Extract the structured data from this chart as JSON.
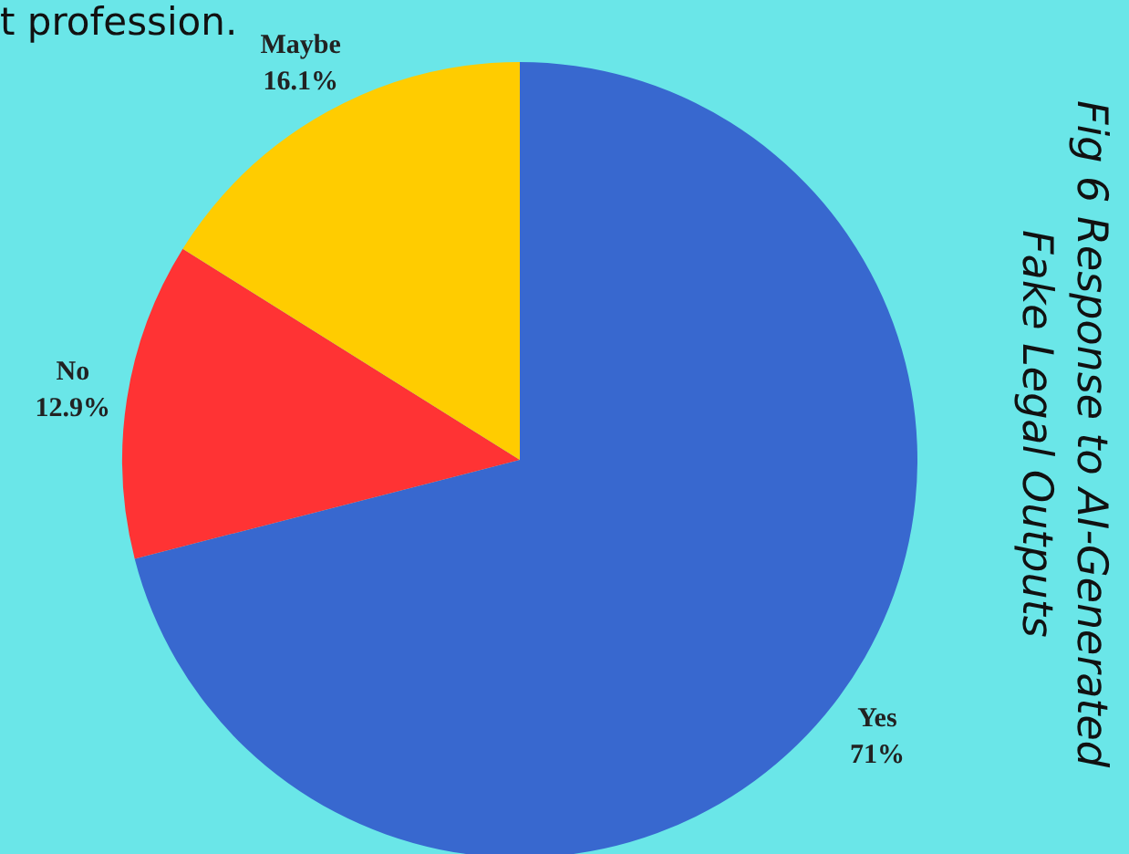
{
  "chart_data": {
    "type": "pie",
    "title": "Fig 6 Response to AI-Generated Fake Legal Outputs",
    "annotations": [
      "t profession."
    ],
    "categories": [
      "Yes",
      "No",
      "Maybe"
    ],
    "values": [
      71,
      12.9,
      16.1
    ],
    "colors": [
      "#3868cf",
      "#ff3334",
      "#ffcc00"
    ],
    "value_labels": [
      "71%",
      "12.9%",
      "16.1%"
    ],
    "legend": false
  }
}
